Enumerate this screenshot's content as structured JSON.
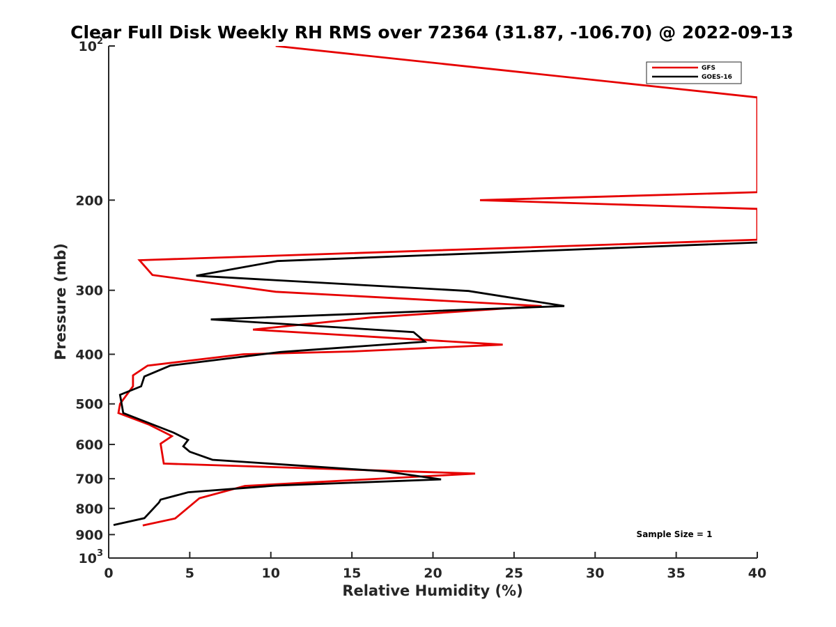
{
  "chart_data": {
    "type": "line",
    "title": "Clear Full Disk Weekly RH RMS over 72364 (31.87, -106.70) @ 2022-09-13",
    "xlabel": "Relative Humidity (%)",
    "ylabel": "Pressure (mb)",
    "xlim": [
      0,
      40
    ],
    "ylim": [
      100,
      1000
    ],
    "yscale": "log",
    "y_reversed": true,
    "grid": false,
    "legend_position": "top-right",
    "x_ticks": [
      "0",
      "5",
      "10",
      "15",
      "20",
      "25",
      "30",
      "35",
      "40"
    ],
    "y_ticks": [
      {
        "value": 100,
        "base": "10",
        "exp": "2"
      },
      {
        "value": 200,
        "base": "200",
        "exp": ""
      },
      {
        "value": 300,
        "base": "300",
        "exp": ""
      },
      {
        "value": 400,
        "base": "400",
        "exp": ""
      },
      {
        "value": 500,
        "base": "500",
        "exp": ""
      },
      {
        "value": 600,
        "base": "600",
        "exp": ""
      },
      {
        "value": 700,
        "base": "700",
        "exp": ""
      },
      {
        "value": 800,
        "base": "800",
        "exp": ""
      },
      {
        "value": 900,
        "base": "900",
        "exp": ""
      },
      {
        "value": 1000,
        "base": "10",
        "exp": "3"
      }
    ],
    "annotation": "Sample Size = 1",
    "series": [
      {
        "name": "GFS",
        "color": "#e60000",
        "points": [
          [
            10.3,
            100
          ],
          [
            40,
            126
          ],
          [
            40,
            193
          ],
          [
            22.9,
            200
          ],
          [
            40,
            208
          ],
          [
            40,
            239
          ],
          [
            1.9,
            262
          ],
          [
            2.7,
            280
          ],
          [
            10.3,
            302
          ],
          [
            26.7,
            322
          ],
          [
            16.2,
            339
          ],
          [
            8.9,
            358
          ],
          [
            24.3,
            383
          ],
          [
            15.0,
            395
          ],
          [
            8.3,
            400
          ],
          [
            2.4,
            421
          ],
          [
            1.5,
            440
          ],
          [
            1.5,
            462
          ],
          [
            0.7,
            500
          ],
          [
            0.6,
            521
          ],
          [
            2.5,
            549
          ],
          [
            3.9,
            578
          ],
          [
            3.2,
            598
          ],
          [
            3.4,
            654
          ],
          [
            22.6,
            684
          ],
          [
            8.4,
            723
          ],
          [
            5.6,
            764
          ],
          [
            4.1,
            837
          ],
          [
            2.1,
            864
          ]
        ]
      },
      {
        "name": "GOES-16",
        "color": "#000000",
        "points": [
          [
            40,
            242
          ],
          [
            10.4,
            263
          ],
          [
            5.4,
            281
          ],
          [
            22.2,
            301
          ],
          [
            28.1,
            322
          ],
          [
            6.3,
            342
          ],
          [
            18.8,
            362
          ],
          [
            19.5,
            378
          ],
          [
            10.6,
            396
          ],
          [
            3.8,
            421
          ],
          [
            2.2,
            442
          ],
          [
            2.0,
            462
          ],
          [
            0.7,
            480
          ],
          [
            0.9,
            521
          ],
          [
            4.0,
            569
          ],
          [
            4.9,
            588
          ],
          [
            4.6,
            605
          ],
          [
            5.0,
            620
          ],
          [
            6.4,
            643
          ],
          [
            17.0,
            677
          ],
          [
            20.5,
            702
          ],
          [
            10.3,
            722
          ],
          [
            4.9,
            744
          ],
          [
            3.2,
            769
          ],
          [
            3.1,
            779
          ],
          [
            2.2,
            836
          ],
          [
            0.3,
            862
          ]
        ]
      }
    ]
  }
}
